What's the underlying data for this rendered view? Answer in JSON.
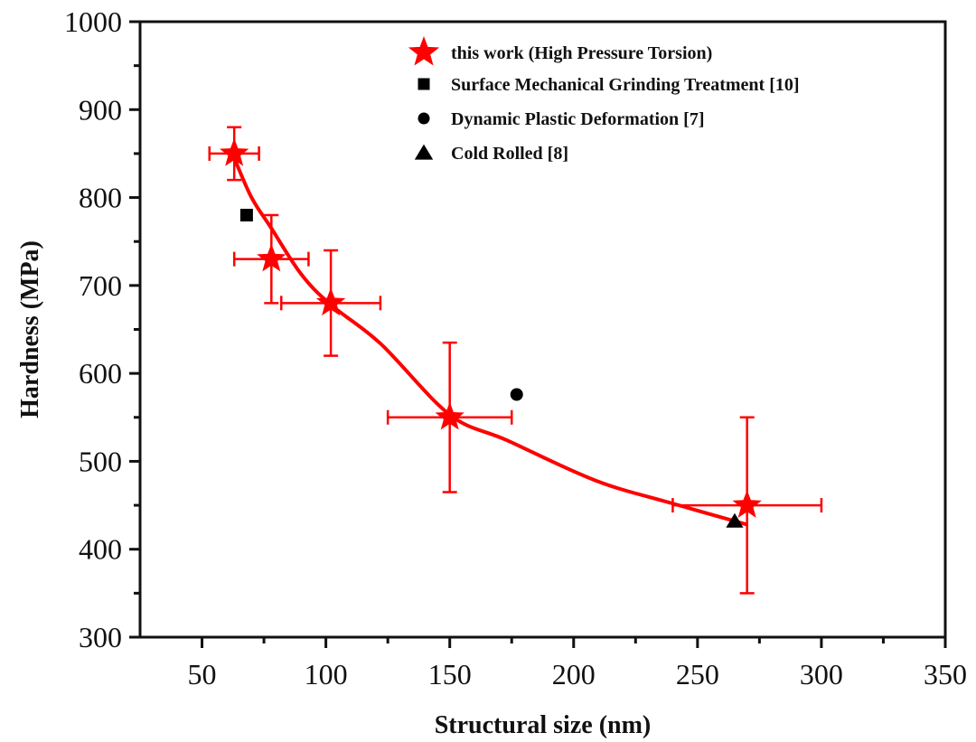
{
  "chart_data": {
    "type": "scatter",
    "title": "",
    "xlabel": "Structural size (nm)",
    "ylabel": "Hardness (MPa)",
    "xlim": [
      25,
      350
    ],
    "ylim": [
      300,
      1000
    ],
    "xticks": [
      50,
      100,
      150,
      200,
      250,
      300,
      350
    ],
    "xtick_labels": [
      "50",
      "100",
      "150",
      "200",
      "250",
      "300",
      "350"
    ],
    "x_minor_ticks": [
      75,
      125,
      175,
      225,
      275,
      325
    ],
    "yticks": [
      300,
      400,
      500,
      600,
      700,
      800,
      900,
      1000
    ],
    "ytick_labels": [
      "300",
      "400",
      "500",
      "600",
      "700",
      "800",
      "900",
      "1000"
    ],
    "y_minor_ticks": [
      350,
      450,
      550,
      650,
      750,
      850,
      950
    ],
    "grid": false,
    "legend_position": "top-center",
    "series": [
      {
        "name": "this work (High Pressure Torsion)",
        "marker": "star",
        "color": "#ff0000",
        "points": [
          {
            "x": 63,
            "y": 850,
            "xerr": 10,
            "yerr_low": 30,
            "yerr_high": 30
          },
          {
            "x": 78,
            "y": 730,
            "xerr": 15,
            "yerr_low": 50,
            "yerr_high": 50
          },
          {
            "x": 102,
            "y": 680,
            "xerr": 20,
            "yerr_low": 60,
            "yerr_high": 60
          },
          {
            "x": 150,
            "y": 550,
            "xerr": 25,
            "yerr_low": 85,
            "yerr_high": 85
          },
          {
            "x": 270,
            "y": 450,
            "xerr": 30,
            "yerr_low": 100,
            "yerr_high": 100
          }
        ]
      },
      {
        "name": "Surface Mechanical Grinding Treatment [10]",
        "marker": "square",
        "color": "#000000",
        "points": [
          {
            "x": 68,
            "y": 780
          }
        ]
      },
      {
        "name": "Dynamic Plastic Deformation [7]",
        "marker": "circle",
        "color": "#000000",
        "points": [
          {
            "x": 177,
            "y": 576
          }
        ]
      },
      {
        "name": "Cold Rolled [8]",
        "marker": "triangle",
        "color": "#000000",
        "points": [
          {
            "x": 265,
            "y": 432
          }
        ]
      }
    ],
    "fit_curve": {
      "color": "#ff0000",
      "x": [
        63,
        70,
        78,
        90,
        102,
        122,
        150,
        173,
        209,
        240,
        270
      ],
      "y": [
        845,
        800,
        765,
        713,
        678,
        634,
        553,
        524,
        478,
        452,
        428
      ]
    }
  }
}
